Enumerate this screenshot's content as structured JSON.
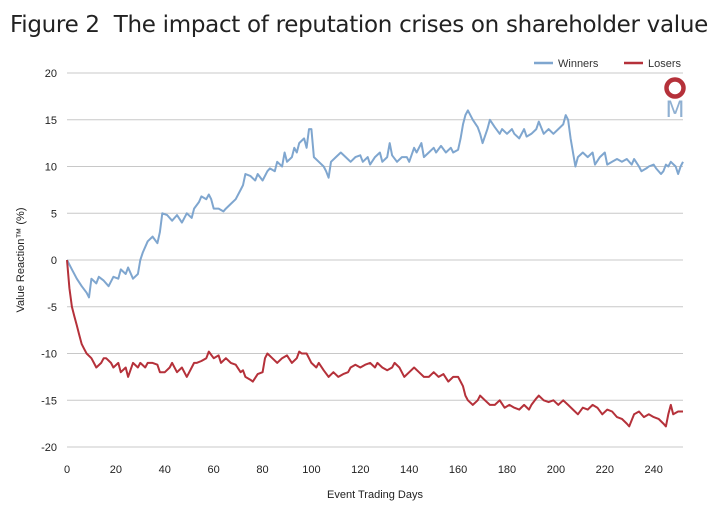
{
  "figure": {
    "label": "Figure 2",
    "title": "The impact of reputation crises on shareholder value"
  },
  "logo": {
    "letter": "M",
    "ring_color": "#b5313a",
    "letter_color": "#8fb0d2"
  },
  "chart_data": {
    "type": "line",
    "xlabel": "Event Trading Days",
    "ylabel": "Value Reaction™ (%)",
    "xlim": [
      0,
      252
    ],
    "ylim": [
      -20,
      20
    ],
    "xticks": [
      0,
      20,
      40,
      60,
      80,
      100,
      120,
      140,
      160,
      180,
      200,
      220,
      240
    ],
    "yticks": [
      20,
      15,
      10,
      5,
      0,
      -5,
      -10,
      -15,
      -20
    ],
    "grid": "horizontal",
    "legend_position": "top-right",
    "series": [
      {
        "name": "Winners",
        "color": "#7fa6cf",
        "points": [
          [
            0,
            0
          ],
          [
            2,
            -1
          ],
          [
            4,
            -2
          ],
          [
            6,
            -2.8
          ],
          [
            8,
            -3.5
          ],
          [
            9,
            -4
          ],
          [
            10,
            -2
          ],
          [
            12,
            -2.5
          ],
          [
            13,
            -1.8
          ],
          [
            15,
            -2.2
          ],
          [
            17,
            -2.8
          ],
          [
            19,
            -1.8
          ],
          [
            21,
            -2
          ],
          [
            22,
            -1
          ],
          [
            24,
            -1.5
          ],
          [
            25,
            -0.8
          ],
          [
            27,
            -2
          ],
          [
            29,
            -1.5
          ],
          [
            30,
            0
          ],
          [
            31,
            0.8
          ],
          [
            33,
            2
          ],
          [
            35,
            2.5
          ],
          [
            37,
            1.8
          ],
          [
            38,
            3
          ],
          [
            39,
            5
          ],
          [
            41,
            4.8
          ],
          [
            43,
            4.2
          ],
          [
            45,
            4.8
          ],
          [
            47,
            4
          ],
          [
            49,
            5
          ],
          [
            51,
            4.5
          ],
          [
            52,
            5.5
          ],
          [
            54,
            6.2
          ],
          [
            55,
            6.8
          ],
          [
            57,
            6.5
          ],
          [
            58,
            7
          ],
          [
            59,
            6.5
          ],
          [
            60,
            5.5
          ],
          [
            62,
            5.5
          ],
          [
            64,
            5.2
          ],
          [
            65,
            5.5
          ],
          [
            67,
            6
          ],
          [
            69,
            6.5
          ],
          [
            71,
            7.5
          ],
          [
            72,
            8
          ],
          [
            73,
            9.2
          ],
          [
            75,
            9
          ],
          [
            77,
            8.5
          ],
          [
            78,
            9.2
          ],
          [
            80,
            8.5
          ],
          [
            82,
            9.5
          ],
          [
            83,
            9.8
          ],
          [
            85,
            9.5
          ],
          [
            86,
            10.5
          ],
          [
            88,
            10
          ],
          [
            89,
            11.5
          ],
          [
            90,
            10.5
          ],
          [
            92,
            11
          ],
          [
            93,
            12
          ],
          [
            94,
            11.5
          ],
          [
            95,
            12.5
          ],
          [
            97,
            13
          ],
          [
            98,
            12
          ],
          [
            99,
            14
          ],
          [
            100,
            14
          ],
          [
            101,
            11
          ],
          [
            103,
            10.5
          ],
          [
            105,
            10
          ],
          [
            106,
            9.5
          ],
          [
            107,
            8.8
          ],
          [
            108,
            10.5
          ],
          [
            110,
            11
          ],
          [
            112,
            11.5
          ],
          [
            114,
            11
          ],
          [
            116,
            10.5
          ],
          [
            118,
            11
          ],
          [
            120,
            11.2
          ],
          [
            121,
            10.5
          ],
          [
            123,
            11
          ],
          [
            124,
            10.2
          ],
          [
            126,
            11
          ],
          [
            128,
            11.5
          ],
          [
            129,
            10.5
          ],
          [
            131,
            11
          ],
          [
            132,
            12.5
          ],
          [
            133,
            11.2
          ],
          [
            135,
            10.5
          ],
          [
            137,
            11
          ],
          [
            139,
            11
          ],
          [
            140,
            10.5
          ],
          [
            142,
            12
          ],
          [
            143,
            11.5
          ],
          [
            145,
            12.5
          ],
          [
            146,
            11
          ],
          [
            148,
            11.5
          ],
          [
            150,
            12
          ],
          [
            151,
            11.5
          ],
          [
            153,
            12.2
          ],
          [
            155,
            11.5
          ],
          [
            157,
            12
          ],
          [
            158,
            11.5
          ],
          [
            160,
            11.8
          ],
          [
            161,
            13
          ],
          [
            162,
            14.5
          ],
          [
            163,
            15.5
          ],
          [
            164,
            16
          ],
          [
            166,
            15
          ],
          [
            168,
            14.2
          ],
          [
            169,
            13.5
          ],
          [
            170,
            12.5
          ],
          [
            172,
            14
          ],
          [
            173,
            15
          ],
          [
            175,
            14.2
          ],
          [
            177,
            13.5
          ],
          [
            178,
            14
          ],
          [
            180,
            13.5
          ],
          [
            182,
            14
          ],
          [
            183,
            13.5
          ],
          [
            185,
            13
          ],
          [
            187,
            14
          ],
          [
            188,
            13.2
          ],
          [
            190,
            13.5
          ],
          [
            192,
            14
          ],
          [
            193,
            14.8
          ],
          [
            195,
            13.5
          ],
          [
            197,
            14
          ],
          [
            199,
            13.5
          ],
          [
            201,
            14
          ],
          [
            203,
            14.5
          ],
          [
            204,
            15.5
          ],
          [
            205,
            15
          ],
          [
            206,
            13
          ],
          [
            207,
            11.5
          ],
          [
            208,
            10
          ],
          [
            209,
            11
          ],
          [
            211,
            11.5
          ],
          [
            213,
            11
          ],
          [
            215,
            11.5
          ],
          [
            216,
            10.2
          ],
          [
            218,
            11
          ],
          [
            220,
            11.5
          ],
          [
            221,
            10.2
          ],
          [
            223,
            10.5
          ],
          [
            225,
            10.8
          ],
          [
            227,
            10.5
          ],
          [
            229,
            10.8
          ],
          [
            231,
            10.2
          ],
          [
            232,
            10.8
          ],
          [
            234,
            10
          ],
          [
            235,
            9.5
          ],
          [
            237,
            9.8
          ],
          [
            238,
            10
          ],
          [
            240,
            10.2
          ],
          [
            241,
            9.8
          ],
          [
            243,
            9.2
          ],
          [
            244,
            9.5
          ],
          [
            245,
            10.2
          ],
          [
            246,
            10
          ],
          [
            247,
            10.5
          ],
          [
            249,
            10
          ],
          [
            250,
            9.2
          ],
          [
            251,
            10
          ],
          [
            252,
            10.5
          ]
        ]
      },
      {
        "name": "Losers",
        "color": "#b5313a",
        "points": [
          [
            0,
            0
          ],
          [
            1,
            -3
          ],
          [
            2,
            -5
          ],
          [
            3,
            -6
          ],
          [
            4,
            -7
          ],
          [
            5,
            -8
          ],
          [
            6,
            -9
          ],
          [
            7,
            -9.5
          ],
          [
            8,
            -10
          ],
          [
            10,
            -10.5
          ],
          [
            11,
            -11
          ],
          [
            12,
            -11.5
          ],
          [
            14,
            -11
          ],
          [
            15,
            -10.5
          ],
          [
            16,
            -10.5
          ],
          [
            18,
            -11
          ],
          [
            19,
            -11.5
          ],
          [
            21,
            -11
          ],
          [
            22,
            -12
          ],
          [
            24,
            -11.5
          ],
          [
            25,
            -12.5
          ],
          [
            27,
            -11
          ],
          [
            29,
            -11.5
          ],
          [
            30,
            -11
          ],
          [
            32,
            -11.5
          ],
          [
            33,
            -11
          ],
          [
            35,
            -11
          ],
          [
            37,
            -11.2
          ],
          [
            38,
            -12
          ],
          [
            40,
            -12
          ],
          [
            42,
            -11.5
          ],
          [
            43,
            -11
          ],
          [
            45,
            -12
          ],
          [
            47,
            -11.5
          ],
          [
            49,
            -12.5
          ],
          [
            51,
            -11.5
          ],
          [
            52,
            -11
          ],
          [
            53,
            -11
          ],
          [
            55,
            -10.8
          ],
          [
            57,
            -10.5
          ],
          [
            58,
            -9.8
          ],
          [
            60,
            -10.5
          ],
          [
            62,
            -10.2
          ],
          [
            63,
            -11
          ],
          [
            65,
            -10.5
          ],
          [
            67,
            -11
          ],
          [
            69,
            -11.2
          ],
          [
            71,
            -12
          ],
          [
            72,
            -11.8
          ],
          [
            73,
            -12.5
          ],
          [
            75,
            -12.8
          ],
          [
            76,
            -13
          ],
          [
            78,
            -12.2
          ],
          [
            80,
            -12
          ],
          [
            81,
            -10.5
          ],
          [
            82,
            -10
          ],
          [
            84,
            -10.5
          ],
          [
            86,
            -11
          ],
          [
            88,
            -10.5
          ],
          [
            90,
            -10.2
          ],
          [
            92,
            -11
          ],
          [
            94,
            -10.5
          ],
          [
            95,
            -9.8
          ],
          [
            96,
            -10
          ],
          [
            98,
            -10
          ],
          [
            100,
            -11
          ],
          [
            102,
            -11.5
          ],
          [
            103,
            -11
          ],
          [
            105,
            -11.8
          ],
          [
            107,
            -12.5
          ],
          [
            109,
            -12
          ],
          [
            111,
            -12.5
          ],
          [
            113,
            -12.2
          ],
          [
            115,
            -12
          ],
          [
            116,
            -11.5
          ],
          [
            118,
            -11.2
          ],
          [
            120,
            -11.5
          ],
          [
            122,
            -11.2
          ],
          [
            124,
            -11
          ],
          [
            126,
            -11.5
          ],
          [
            127,
            -11
          ],
          [
            129,
            -11.5
          ],
          [
            131,
            -11.8
          ],
          [
            133,
            -11.5
          ],
          [
            134,
            -11
          ],
          [
            136,
            -11.5
          ],
          [
            138,
            -12.5
          ],
          [
            140,
            -12
          ],
          [
            142,
            -11.5
          ],
          [
            144,
            -12
          ],
          [
            146,
            -12.5
          ],
          [
            148,
            -12.5
          ],
          [
            150,
            -12
          ],
          [
            152,
            -12.5
          ],
          [
            154,
            -12.2
          ],
          [
            156,
            -13
          ],
          [
            158,
            -12.5
          ],
          [
            160,
            -12.5
          ],
          [
            161,
            -13
          ],
          [
            162,
            -13.5
          ],
          [
            163,
            -14.5
          ],
          [
            164,
            -15
          ],
          [
            166,
            -15.5
          ],
          [
            168,
            -15
          ],
          [
            169,
            -14.5
          ],
          [
            171,
            -15
          ],
          [
            173,
            -15.5
          ],
          [
            175,
            -15.5
          ],
          [
            177,
            -15
          ],
          [
            179,
            -15.8
          ],
          [
            181,
            -15.5
          ],
          [
            183,
            -15.8
          ],
          [
            185,
            -16
          ],
          [
            187,
            -15.5
          ],
          [
            189,
            -16
          ],
          [
            190,
            -15.5
          ],
          [
            192,
            -14.8
          ],
          [
            193,
            -14.5
          ],
          [
            195,
            -15
          ],
          [
            197,
            -15.2
          ],
          [
            199,
            -15
          ],
          [
            201,
            -15.5
          ],
          [
            203,
            -15
          ],
          [
            205,
            -15.5
          ],
          [
            207,
            -16
          ],
          [
            209,
            -16.5
          ],
          [
            211,
            -15.8
          ],
          [
            213,
            -16
          ],
          [
            215,
            -15.5
          ],
          [
            217,
            -15.8
          ],
          [
            219,
            -16.5
          ],
          [
            221,
            -16
          ],
          [
            223,
            -16.2
          ],
          [
            225,
            -16.8
          ],
          [
            227,
            -17
          ],
          [
            229,
            -17.5
          ],
          [
            230,
            -17.8
          ],
          [
            232,
            -16.5
          ],
          [
            234,
            -16.2
          ],
          [
            236,
            -16.8
          ],
          [
            238,
            -16.5
          ],
          [
            240,
            -16.8
          ],
          [
            242,
            -17
          ],
          [
            244,
            -17.5
          ],
          [
            245,
            -17.8
          ],
          [
            246,
            -16.5
          ],
          [
            247,
            -15.5
          ],
          [
            248,
            -16.5
          ],
          [
            250,
            -16.2
          ],
          [
            252,
            -16.2
          ]
        ]
      }
    ]
  }
}
